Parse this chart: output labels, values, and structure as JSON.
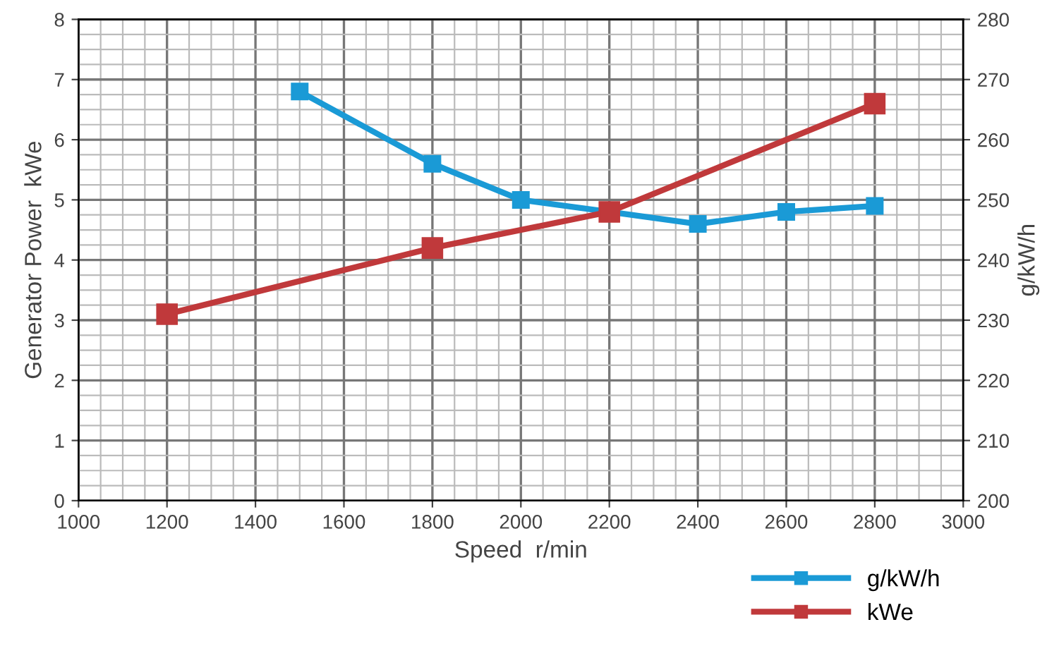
{
  "chart_data": {
    "type": "line",
    "xlabel": "Speed  r/min",
    "ylabel": "Generator Power  kWe",
    "y2label": "g/kW/h",
    "xlim": [
      1000,
      3000
    ],
    "xticks": [
      1000,
      1200,
      1400,
      1600,
      1800,
      2000,
      2200,
      2400,
      2600,
      2800,
      3000
    ],
    "ylim": [
      0,
      8
    ],
    "yticks": [
      0,
      1,
      2,
      3,
      4,
      5,
      6,
      7,
      8
    ],
    "y2lim": [
      200,
      280
    ],
    "y2ticks": [
      200,
      210,
      220,
      230,
      240,
      250,
      260,
      270,
      280
    ],
    "grid": true,
    "legend": "bottom right",
    "marker": "square",
    "line_style": "solid",
    "series": [
      {
        "name": "g/kW/h",
        "color": "#1a9ad6",
        "axis": "y2",
        "x": [
          1500,
          1800,
          2000,
          2200,
          2400,
          2600,
          2800
        ],
        "values": [
          268,
          256,
          250,
          248,
          246,
          248,
          249
        ]
      },
      {
        "name": "kWe",
        "color": "#c0393b",
        "x": [
          1200,
          1800,
          2200,
          2800
        ],
        "values": [
          3.1,
          4.2,
          4.8,
          6.6
        ]
      }
    ]
  }
}
